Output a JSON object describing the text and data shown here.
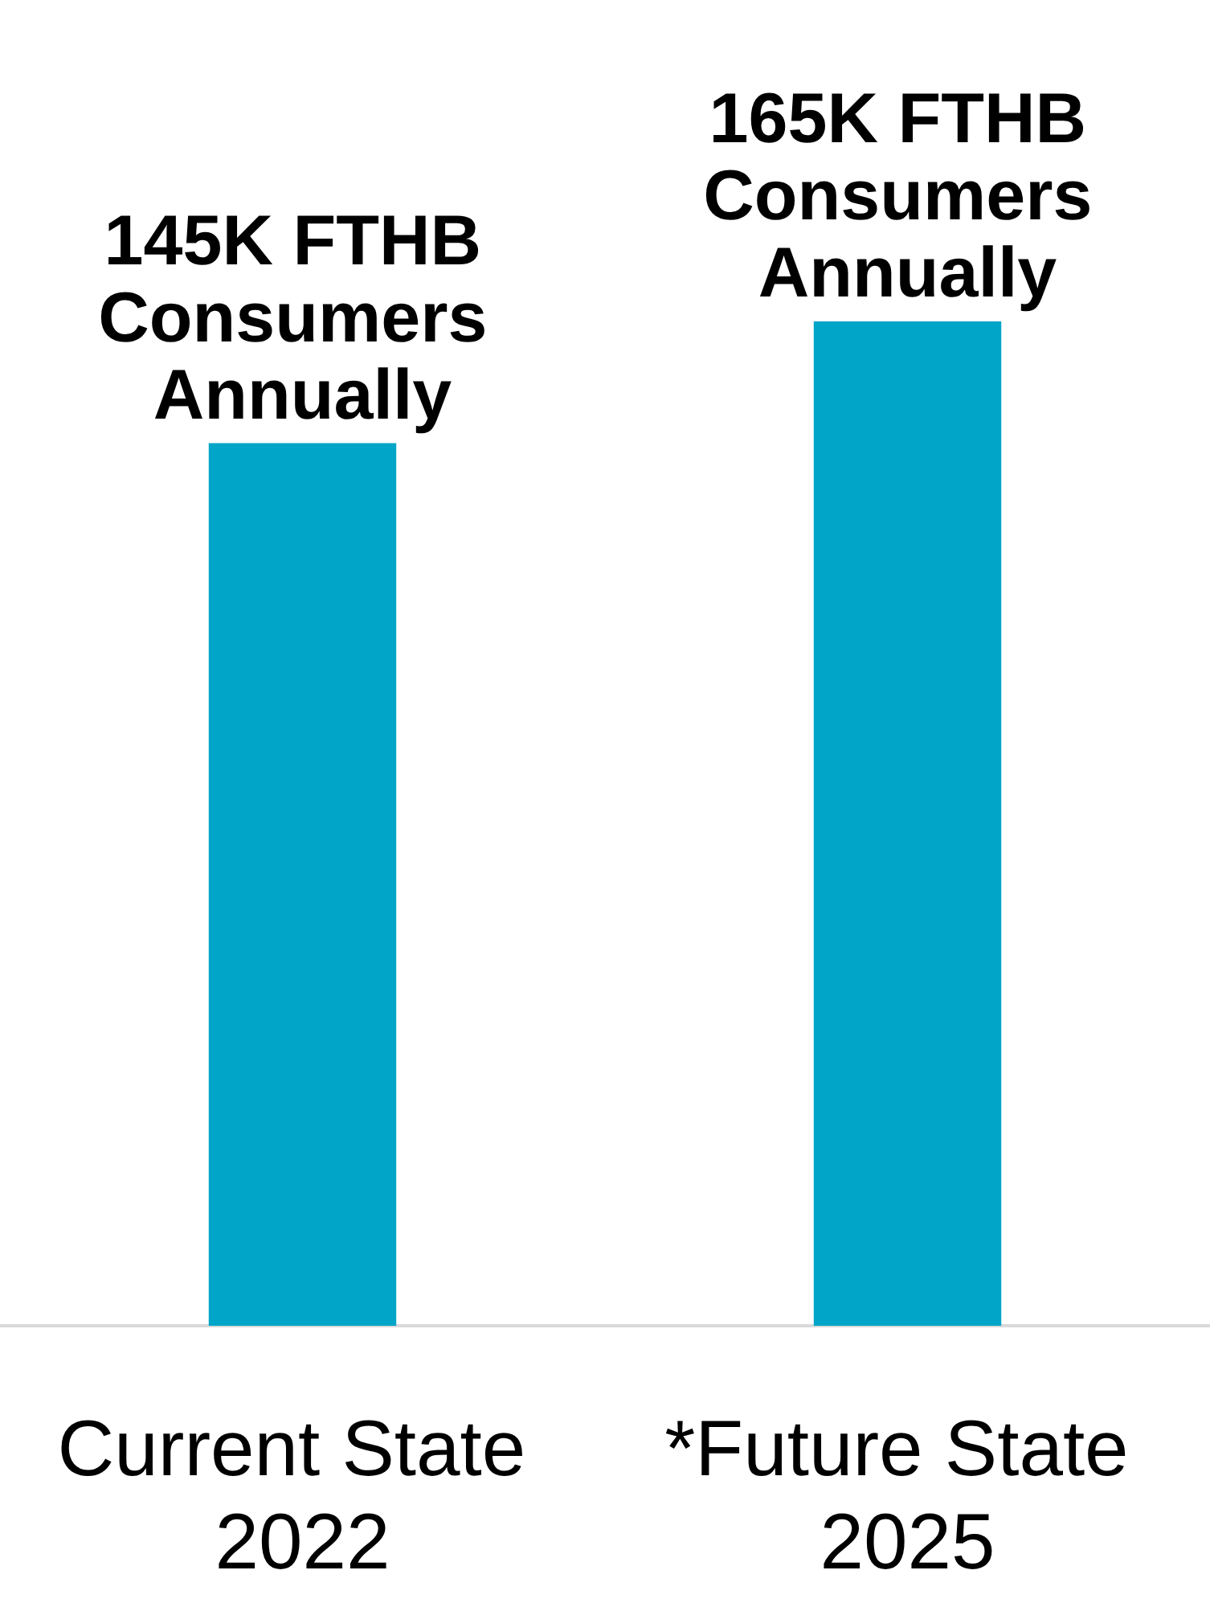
{
  "chart_data": {
    "type": "bar",
    "categories": [
      "Current State 2022",
      "*Future State 2025"
    ],
    "values": [
      145,
      165
    ],
    "color": "#00a5c8",
    "value_labels": [
      "145K FTHB Consumers Annually",
      "165K FTHB Consumers Annually"
    ]
  }
}
